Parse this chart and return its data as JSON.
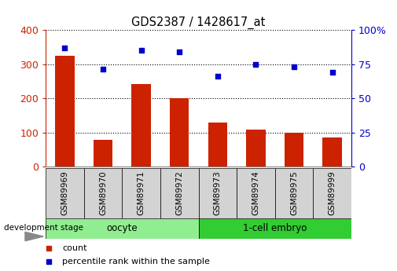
{
  "title": "GDS2387 / 1428617_at",
  "samples": [
    "GSM89969",
    "GSM89970",
    "GSM89971",
    "GSM89972",
    "GSM89973",
    "GSM89974",
    "GSM89975",
    "GSM89999"
  ],
  "counts": [
    325,
    78,
    242,
    200,
    128,
    108,
    98,
    85
  ],
  "percentiles": [
    87,
    71,
    85,
    84,
    66,
    75,
    73,
    69
  ],
  "left_ylim": [
    0,
    400
  ],
  "right_ylim": [
    0,
    100
  ],
  "left_yticks": [
    0,
    100,
    200,
    300,
    400
  ],
  "right_yticks": [
    0,
    25,
    50,
    75,
    100
  ],
  "right_yticklabels": [
    "0",
    "25",
    "50",
    "75",
    "100%"
  ],
  "groups": [
    {
      "label": "oocyte",
      "indices": [
        0,
        1,
        2,
        3
      ],
      "color": "#90EE90"
    },
    {
      "label": "1-cell embryo",
      "indices": [
        4,
        5,
        6,
        7
      ],
      "color": "#32CD32"
    }
  ],
  "bar_color": "#CC2200",
  "scatter_color": "#0000CC",
  "bar_width": 0.5,
  "ylabel_left_color": "#CC2200",
  "ylabel_right_color": "#0000CC",
  "sample_bg_color": "#D3D3D3",
  "development_stage_label": "development stage",
  "legend_items": [
    {
      "label": "count",
      "color": "#CC2200"
    },
    {
      "label": "percentile rank within the sample",
      "color": "#0000CC"
    }
  ]
}
